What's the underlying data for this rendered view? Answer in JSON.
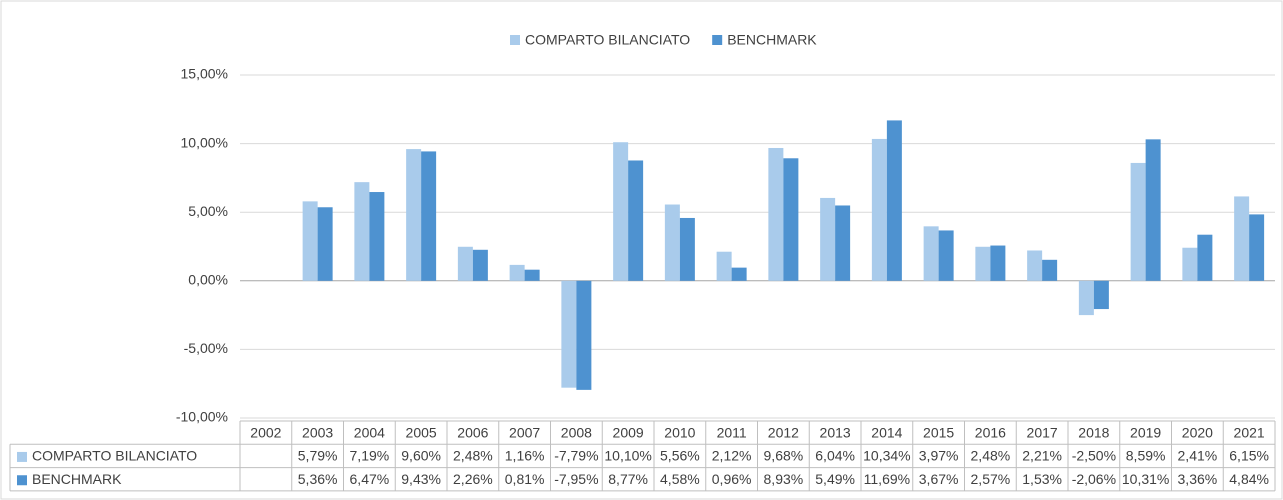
{
  "chart_data": {
    "type": "bar",
    "categories": [
      "2002",
      "2003",
      "2004",
      "2005",
      "2006",
      "2007",
      "2008",
      "2009",
      "2010",
      "2011",
      "2012",
      "2013",
      "2014",
      "2015",
      "2016",
      "2017",
      "2018",
      "2019",
      "2020",
      "2021"
    ],
    "series": [
      {
        "name": "COMPARTO BILANCIATO",
        "color": "#a9cbeb",
        "values": [
          null,
          5.79,
          7.19,
          9.6,
          2.48,
          1.16,
          -7.79,
          10.1,
          5.56,
          2.12,
          9.68,
          6.04,
          10.34,
          3.97,
          2.48,
          2.21,
          -2.5,
          8.59,
          2.41,
          6.15
        ],
        "value_labels": [
          null,
          "5,79%",
          "7,19%",
          "9,60%",
          "2,48%",
          "1,16%",
          "-7,79%",
          "10,10%",
          "5,56%",
          "2,12%",
          "9,68%",
          "6,04%",
          "10,34%",
          "3,97%",
          "2,48%",
          "2,21%",
          "-2,50%",
          "8,59%",
          "2,41%",
          "6,15%"
        ]
      },
      {
        "name": "BENCHMARK",
        "color": "#4e92d0",
        "values": [
          null,
          5.36,
          6.47,
          9.43,
          2.26,
          0.81,
          -7.95,
          8.77,
          4.58,
          0.96,
          8.93,
          5.49,
          11.69,
          3.67,
          2.57,
          1.53,
          -2.06,
          10.31,
          3.36,
          4.84
        ],
        "value_labels": [
          null,
          "5,36%",
          "6,47%",
          "9,43%",
          "2,26%",
          "0,81%",
          "-7,95%",
          "8,77%",
          "4,58%",
          "0,96%",
          "8,93%",
          "5,49%",
          "11,69%",
          "3,67%",
          "2,57%",
          "1,53%",
          "-2,06%",
          "10,31%",
          "3,36%",
          "4,84%"
        ]
      }
    ],
    "ylim": [
      -10,
      15
    ],
    "yticks": [
      {
        "value": -10,
        "label": "-10,00%"
      },
      {
        "value": -5,
        "label": "-5,00%"
      },
      {
        "value": 0,
        "label": "0,00%"
      },
      {
        "value": 5,
        "label": "5,00%"
      },
      {
        "value": 10,
        "label": "10,00%"
      },
      {
        "value": 15,
        "label": "15,00%"
      }
    ],
    "grid": true,
    "legend": "top"
  }
}
